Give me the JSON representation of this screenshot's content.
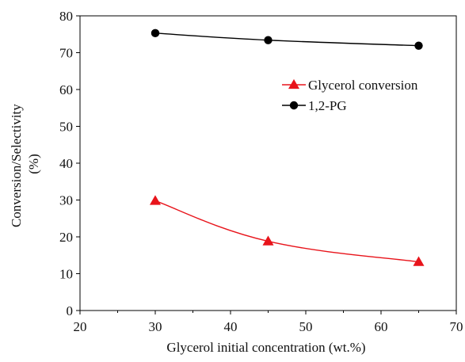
{
  "chart_data": {
    "type": "line",
    "xlabel": "Glycerol initial concentration (wt.%)",
    "ylabel_lines": [
      "Conversion/Selectivity",
      "(%)"
    ],
    "xlim": [
      20,
      70
    ],
    "ylim": [
      0,
      80
    ],
    "x_ticks": [
      20,
      30,
      40,
      50,
      60,
      70
    ],
    "y_ticks": [
      0,
      10,
      20,
      30,
      40,
      50,
      60,
      70,
      80
    ],
    "x_tick_labels": [
      "20",
      "30",
      "40",
      "50",
      "60",
      "70"
    ],
    "y_tick_labels": [
      "0",
      "10",
      "20",
      "30",
      "40",
      "50",
      "60",
      "70",
      "80"
    ],
    "grid": false,
    "legend_position": "upper-right",
    "series": [
      {
        "name": "Glycerol conversion",
        "marker": "triangle",
        "color": "#e8141b",
        "x": [
          30,
          45,
          65
        ],
        "values": [
          29.8,
          18.8,
          13.2
        ]
      },
      {
        "name": "1,2-PG",
        "marker": "circle",
        "color": "#000000",
        "x": [
          30,
          45,
          65
        ],
        "values": [
          75.3,
          73.4,
          71.9
        ]
      }
    ]
  }
}
